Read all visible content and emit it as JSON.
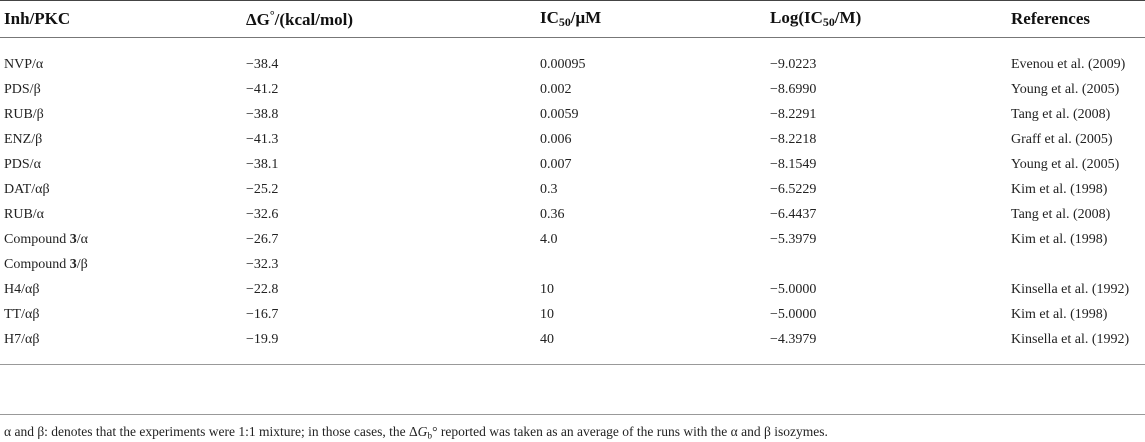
{
  "table": {
    "headers": {
      "inh": "Inh/PKC",
      "dg_prefix": "ΔG",
      "dg_sup": "°",
      "dg_suffix": "/(kcal/mol)",
      "ic50_prefix": "IC",
      "ic50_sub": "50",
      "ic50_suffix": "/μM",
      "log_prefix": "Log(IC",
      "log_sub": "50",
      "log_suffix": "/M)",
      "refs": "References"
    },
    "rows": [
      {
        "inh_pre": "NVP/α",
        "inh_bold": "",
        "inh_post": "",
        "dg": "−38.4",
        "ic50": "0.00095",
        "log": "−9.0223",
        "ref": "Evenou et al. (2009)"
      },
      {
        "inh_pre": "PDS/β",
        "inh_bold": "",
        "inh_post": "",
        "dg": "−41.2",
        "ic50": "0.002",
        "log": "−8.6990",
        "ref": "Young et al. (2005)"
      },
      {
        "inh_pre": "RUB/β",
        "inh_bold": "",
        "inh_post": "",
        "dg": "−38.8",
        "ic50": "0.0059",
        "log": "−8.2291",
        "ref": "Tang et al. (2008)"
      },
      {
        "inh_pre": "ENZ/β",
        "inh_bold": "",
        "inh_post": "",
        "dg": "−41.3",
        "ic50": "0.006",
        "log": "−8.2218",
        "ref": "Graff et al. (2005)"
      },
      {
        "inh_pre": "PDS/α",
        "inh_bold": "",
        "inh_post": "",
        "dg": "−38.1",
        "ic50": "0.007",
        "log": "−8.1549",
        "ref": "Young et al. (2005)"
      },
      {
        "inh_pre": "DAT/αβ",
        "inh_bold": "",
        "inh_post": "",
        "dg": "−25.2",
        "ic50": "0.3",
        "log": "−6.5229",
        "ref": "Kim et al. (1998)"
      },
      {
        "inh_pre": "RUB/α",
        "inh_bold": "",
        "inh_post": "",
        "dg": "−32.6",
        "ic50": "0.36",
        "log": "−6.4437",
        "ref": "Tang et al. (2008)"
      },
      {
        "inh_pre": "Compound ",
        "inh_bold": "3",
        "inh_post": "/α",
        "dg": "−26.7",
        "ic50": "4.0",
        "log": "−5.3979",
        "ref": "Kim et al. (1998)"
      },
      {
        "inh_pre": "Compound ",
        "inh_bold": "3",
        "inh_post": "/β",
        "dg": "−32.3",
        "ic50": "",
        "log": "",
        "ref": ""
      },
      {
        "inh_pre": "H4/αβ",
        "inh_bold": "",
        "inh_post": "",
        "dg": "−22.8",
        "ic50": "10",
        "log": "−5.0000",
        "ref": "Kinsella et al. (1992)"
      },
      {
        "inh_pre": "TT/αβ",
        "inh_bold": "",
        "inh_post": "",
        "dg": "−16.7",
        "ic50": "10",
        "log": "−5.0000",
        "ref": "Kim et al. (1998)"
      },
      {
        "inh_pre": "H7/αβ",
        "inh_bold": "",
        "inh_post": "",
        "dg": "−19.9",
        "ic50": "40",
        "log": "−4.3979",
        "ref": "Kinsella et al. (1992)"
      }
    ]
  },
  "footnote": {
    "pre": "α and β: denotes that the experiments were 1:1 mixture; in those cases, the Δ",
    "g": "G",
    "b": "b",
    "deg": "°",
    "post": " reported was taken as an average of the runs with the α and β isozymes."
  }
}
